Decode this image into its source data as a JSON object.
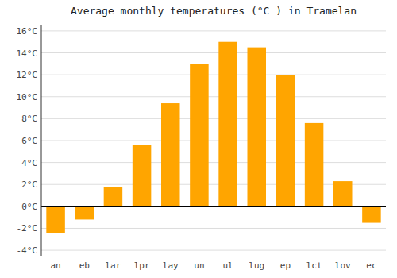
{
  "chart_data": {
    "type": "bar",
    "title": "Average monthly temperatures (°C ) in Tramelan",
    "categories": [
      "an",
      "eb",
      "lar",
      "lpr",
      "lay",
      "un",
      "ul",
      "lug",
      "ep",
      "lct",
      "lov",
      "ec"
    ],
    "values": [
      -2.4,
      -1.2,
      1.8,
      5.6,
      9.4,
      13.0,
      15.0,
      14.5,
      12.0,
      7.6,
      2.3,
      -1.5
    ],
    "color": "#FFA500",
    "ylim": [
      -4.5,
      16.5
    ],
    "yticks": [
      {
        "value": -4,
        "label": "-4°C"
      },
      {
        "value": -2,
        "label": "-2°C"
      },
      {
        "value": 0,
        "label": "0°C"
      },
      {
        "value": 2,
        "label": "2°C"
      },
      {
        "value": 4,
        "label": "4°C"
      },
      {
        "value": 6,
        "label": "6°C"
      },
      {
        "value": 8,
        "label": "8°C"
      },
      {
        "value": 10,
        "label": "10°C"
      },
      {
        "value": 12,
        "label": "12°C"
      },
      {
        "value": 14,
        "label": "14°C"
      },
      {
        "value": 16,
        "label": "16°C"
      }
    ],
    "grid": true
  }
}
